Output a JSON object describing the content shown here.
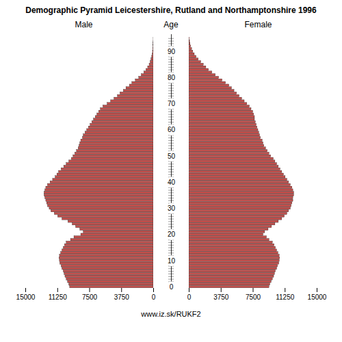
{
  "chart_data": {
    "type": "bar",
    "orientation": "horizontal",
    "title": "Demographic Pyramid Leicestershire, Rutland and Northamptonshire 1996",
    "ylabel": "Age",
    "categories": [
      0,
      1,
      2,
      3,
      4,
      5,
      6,
      7,
      8,
      9,
      10,
      11,
      12,
      13,
      14,
      15,
      16,
      17,
      18,
      19,
      20,
      21,
      22,
      23,
      24,
      25,
      26,
      27,
      28,
      29,
      30,
      31,
      32,
      33,
      34,
      35,
      36,
      37,
      38,
      39,
      40,
      41,
      42,
      43,
      44,
      45,
      46,
      47,
      48,
      49,
      50,
      51,
      52,
      53,
      54,
      55,
      56,
      57,
      58,
      59,
      60,
      61,
      62,
      63,
      64,
      65,
      66,
      67,
      68,
      69,
      70,
      71,
      72,
      73,
      74,
      75,
      76,
      77,
      78,
      79,
      80,
      81,
      82,
      83,
      84,
      85,
      86,
      87,
      88,
      89,
      90,
      91,
      92,
      93,
      94,
      95
    ],
    "series": [
      {
        "name": "Male",
        "color": "#C0504D",
        "values": [
          9800,
          9900,
          10050,
          10200,
          10350,
          10450,
          10550,
          10700,
          10800,
          10950,
          11000,
          11050,
          11000,
          10850,
          10700,
          10550,
          10400,
          10200,
          9700,
          9300,
          8500,
          8200,
          8600,
          9100,
          9500,
          10000,
          10700,
          11200,
          11600,
          12000,
          12200,
          12400,
          12500,
          12600,
          12700,
          12800,
          12800,
          12700,
          12600,
          12400,
          12100,
          11800,
          11500,
          11300,
          11100,
          10800,
          10500,
          10200,
          9900,
          9600,
          9400,
          9200,
          9000,
          8800,
          8700,
          8600,
          8500,
          8300,
          8200,
          8000,
          7800,
          7600,
          7400,
          7200,
          7000,
          6800,
          6600,
          6400,
          6200,
          5900,
          5400,
          5000,
          4600,
          4200,
          3900,
          3500,
          3200,
          2800,
          2500,
          2100,
          1700,
          1400,
          1100,
          850,
          650,
          480,
          360,
          260,
          180,
          120,
          80,
          50,
          30,
          18,
          10,
          5
        ]
      },
      {
        "name": "Female",
        "color": "#C0504D",
        "values": [
          9400,
          9500,
          9650,
          9800,
          9950,
          10050,
          10150,
          10300,
          10400,
          10550,
          10600,
          10650,
          10600,
          10450,
          10300,
          10150,
          10000,
          9800,
          9400,
          9100,
          8700,
          8900,
          9300,
          9700,
          10100,
          10500,
          10900,
          11200,
          11500,
          11700,
          11900,
          12000,
          12100,
          12200,
          12200,
          12300,
          12300,
          12200,
          12100,
          11900,
          11700,
          11500,
          11300,
          11100,
          10900,
          10700,
          10500,
          10300,
          10100,
          9900,
          9600,
          9400,
          9200,
          9000,
          8800,
          8700,
          8600,
          8400,
          8300,
          8200,
          8100,
          8000,
          7900,
          7800,
          7700,
          7700,
          7600,
          7500,
          7300,
          7100,
          6800,
          6500,
          6200,
          5900,
          5600,
          5300,
          5000,
          4700,
          4300,
          3900,
          3500,
          3100,
          2700,
          2300,
          2000,
          1700,
          1400,
          1100,
          850,
          640,
          470,
          330,
          220,
          140,
          85,
          45
        ]
      }
    ],
    "xlim": [
      0,
      15000
    ],
    "xticks": [
      0,
      3750,
      7500,
      11250,
      15000
    ],
    "ylim": [
      -0.5,
      96.5
    ],
    "yticks": [
      0,
      10,
      20,
      30,
      40,
      50,
      60,
      70,
      80,
      90
    ],
    "grid": false,
    "annotations": [
      "www.iz.sk/RUKF2"
    ]
  }
}
